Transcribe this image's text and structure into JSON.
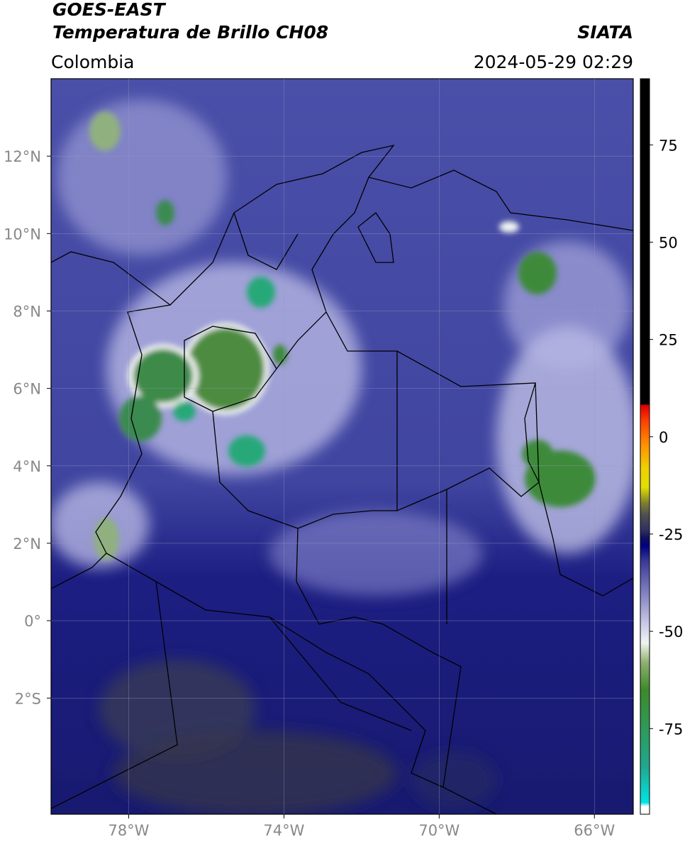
{
  "header": {
    "title": "GOES-EAST",
    "subtitle": "Temperatura de Brillo CH08",
    "source": "SIATA",
    "region": "Colombia",
    "datetime": "2024-05-29 02:29"
  },
  "map": {
    "lonlim": [
      -80,
      -65
    ],
    "latlim": [
      -5,
      14
    ],
    "grid": true,
    "lonticks": [
      {
        "value": -78,
        "label": "78°W"
      },
      {
        "value": -74,
        "label": "74°W"
      },
      {
        "value": -70,
        "label": "70°W"
      },
      {
        "value": -66,
        "label": "66°W"
      }
    ],
    "latticks": [
      {
        "value": 12,
        "label": "12°N"
      },
      {
        "value": 10,
        "label": "10°N"
      },
      {
        "value": 8,
        "label": "8°N"
      },
      {
        "value": 6,
        "label": "6°N"
      },
      {
        "value": 4,
        "label": "4°N"
      },
      {
        "value": 2,
        "label": "2°N"
      },
      {
        "value": 0,
        "label": "0°"
      },
      {
        "value": -2,
        "label": "2°S"
      }
    ]
  },
  "colorbar": {
    "lim": [
      -97,
      92
    ],
    "ticks": [
      75,
      50,
      25,
      0,
      -25,
      -50,
      -75
    ],
    "stops": [
      [
        -97,
        "#ffffff"
      ],
      [
        -95,
        "#ffffff"
      ],
      [
        -94,
        "#00e5e5"
      ],
      [
        -85,
        "#20a890"
      ],
      [
        -75,
        "#2e9a5a"
      ],
      [
        -65,
        "#3d8a2a"
      ],
      [
        -58,
        "#90b070"
      ],
      [
        -53,
        "#f0f4f0"
      ],
      [
        -48,
        "#c8c8e8"
      ],
      [
        -40,
        "#8080c0"
      ],
      [
        -32,
        "#3a3a98"
      ],
      [
        -28,
        "#000080"
      ],
      [
        -26,
        "#101060"
      ],
      [
        -24,
        "#303060"
      ],
      [
        -20,
        "#505050"
      ],
      [
        -17,
        "#808030"
      ],
      [
        -13,
        "#e0e000"
      ],
      [
        -8,
        "#f0d000"
      ],
      [
        -2,
        "#ff9000"
      ],
      [
        4,
        "#ff4000"
      ],
      [
        8,
        "#e00000"
      ],
      [
        8.5,
        "#000000"
      ],
      [
        92,
        "#000000"
      ]
    ]
  }
}
